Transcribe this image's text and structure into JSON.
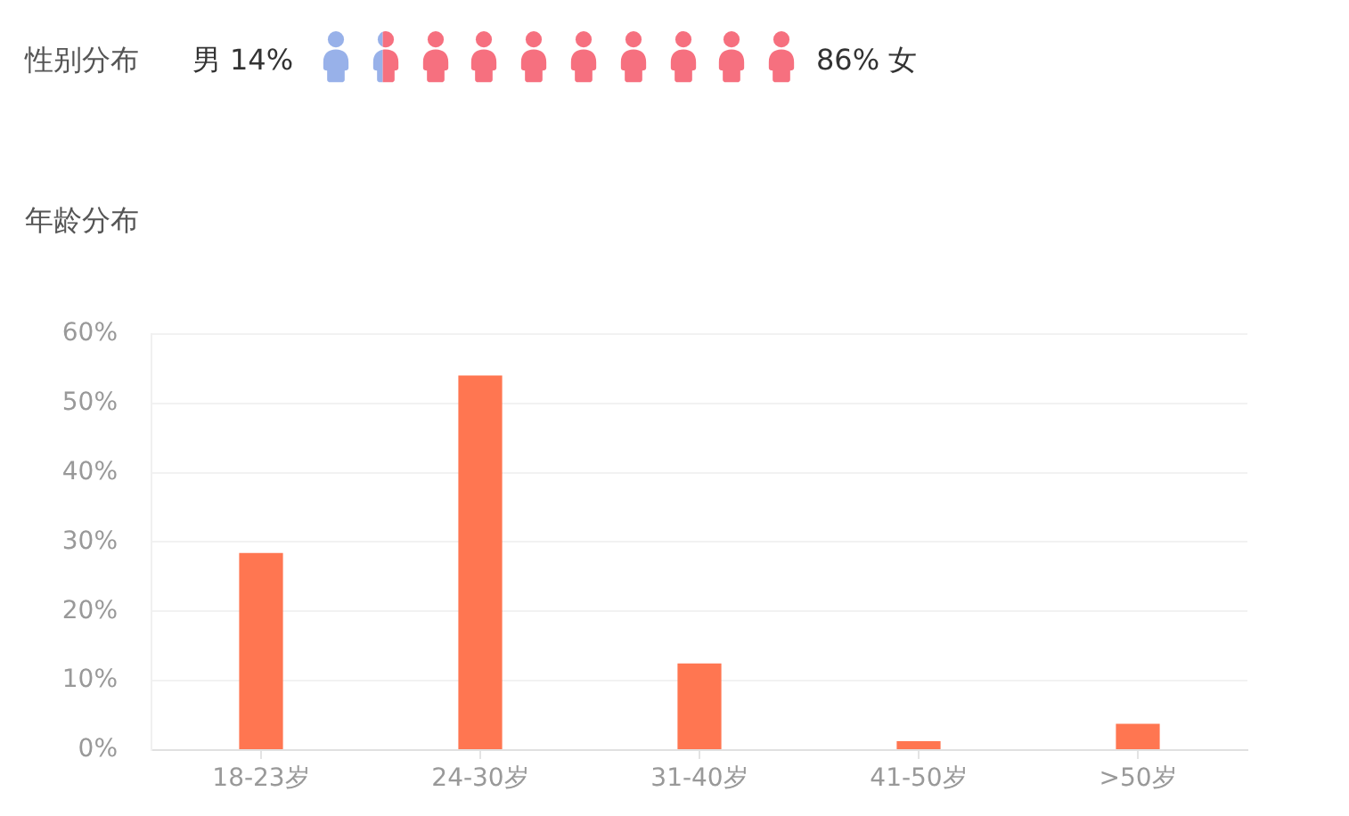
{
  "chart_data": [
    {
      "type": "other",
      "title": "性别分布",
      "categories": [
        "男",
        "女"
      ],
      "values": [
        14,
        86
      ],
      "value_labels": [
        "14%",
        "86%"
      ],
      "colors": [
        "#98b1e9",
        "#f6707f"
      ]
    },
    {
      "type": "bar",
      "title": "年龄分布",
      "categories": [
        "18-23岁",
        "24-30岁",
        "31-40岁",
        "41-50岁",
        ">50岁"
      ],
      "values": [
        28.4,
        54,
        12.5,
        1.3,
        3.8
      ],
      "color": "#ff7651",
      "ylim": [
        0,
        60
      ],
      "yticks": [
        {
          "value": 0,
          "label": "0%"
        },
        {
          "value": 10,
          "label": "10%"
        },
        {
          "value": 20,
          "label": "20%"
        },
        {
          "value": 30,
          "label": "30%"
        },
        {
          "value": 40,
          "label": "40%"
        },
        {
          "value": 50,
          "label": "50%"
        },
        {
          "value": 60,
          "label": "60%"
        }
      ],
      "grid": "y"
    }
  ]
}
